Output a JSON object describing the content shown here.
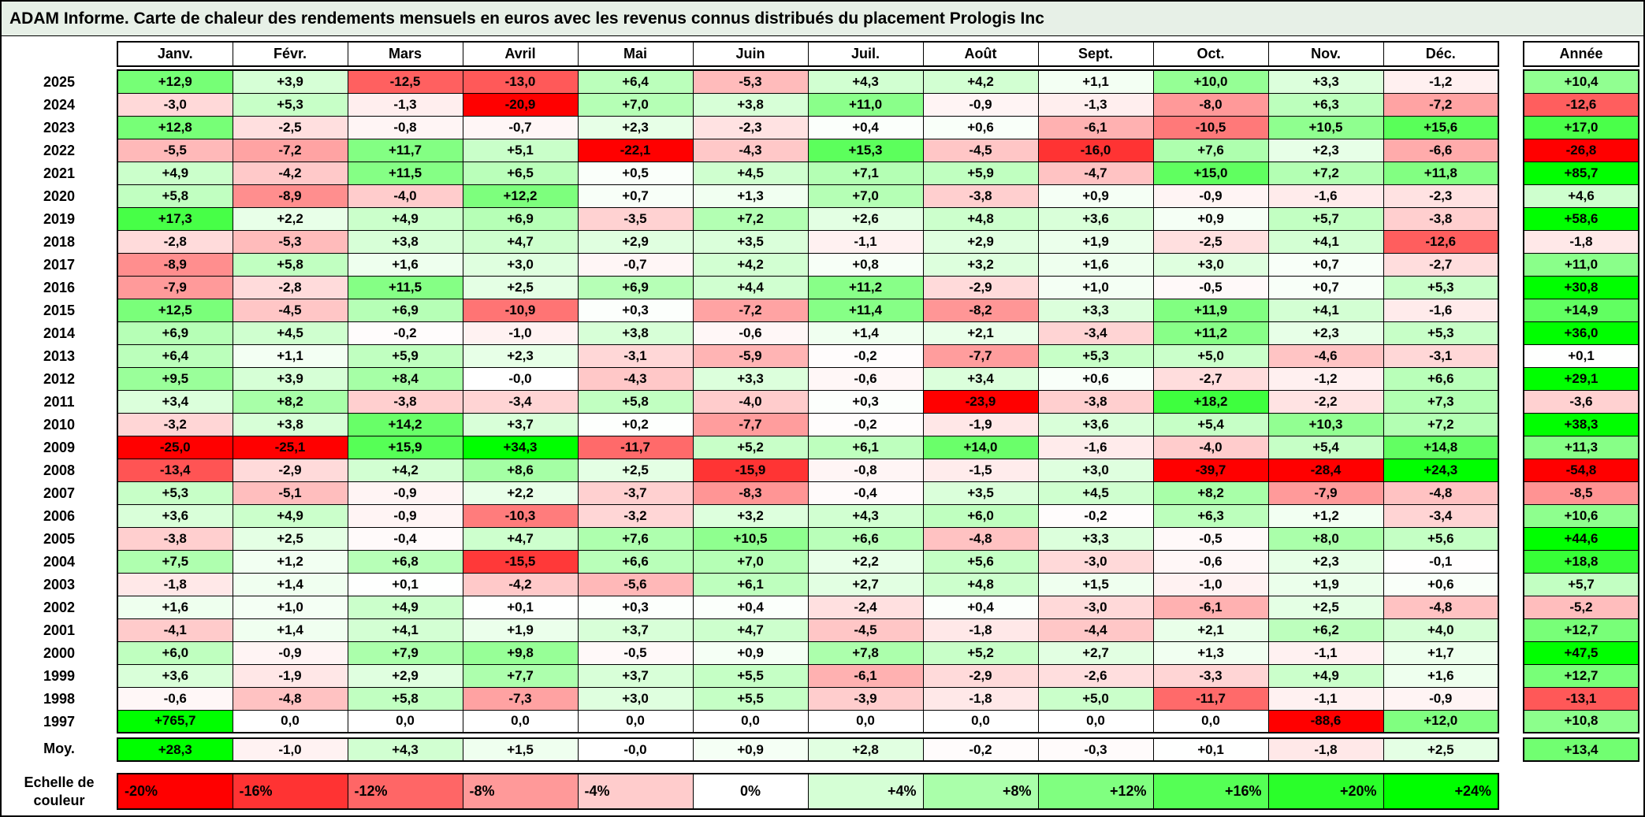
{
  "title": "ADAM Informe. Carte de chaleur des rendements mensuels en euros avec les revenus connus distribués du placement Prologis Inc",
  "chart_data": {
    "type": "heatmap",
    "columns": [
      "Janv.",
      "Févr.",
      "Mars",
      "Avril",
      "Mai",
      "Juin",
      "Juil.",
      "Août",
      "Sept.",
      "Oct.",
      "Nov.",
      "Déc."
    ],
    "year_column_header": "Année",
    "rows": [
      {
        "year": "2025",
        "values": [
          "+12,9",
          "+3,9",
          "-12,5",
          "-13,0",
          "+6,4",
          "-5,3",
          "+4,3",
          "+4,2",
          "+1,1",
          "+10,0",
          "+3,3",
          "-1,2"
        ],
        "annual": "+10,4"
      },
      {
        "year": "2024",
        "values": [
          "-3,0",
          "+5,3",
          "-1,3",
          "-20,9",
          "+7,0",
          "+3,8",
          "+11,0",
          "-0,9",
          "-1,3",
          "-8,0",
          "+6,3",
          "-7,2"
        ],
        "annual": "-12,6"
      },
      {
        "year": "2023",
        "values": [
          "+12,8",
          "-2,5",
          "-0,8",
          "-0,7",
          "+2,3",
          "-2,3",
          "+0,4",
          "+0,6",
          "-6,1",
          "-10,5",
          "+10,5",
          "+15,6"
        ],
        "annual": "+17,0"
      },
      {
        "year": "2022",
        "values": [
          "-5,5",
          "-7,2",
          "+11,7",
          "+5,1",
          "-22,1",
          "-4,3",
          "+15,3",
          "-4,5",
          "-16,0",
          "+7,6",
          "+2,3",
          "-6,6"
        ],
        "annual": "-26,8"
      },
      {
        "year": "2021",
        "values": [
          "+4,9",
          "-4,2",
          "+11,5",
          "+6,5",
          "+0,5",
          "+4,5",
          "+7,1",
          "+5,9",
          "-4,7",
          "+15,0",
          "+7,2",
          "+11,8"
        ],
        "annual": "+85,7"
      },
      {
        "year": "2020",
        "values": [
          "+5,8",
          "-8,9",
          "-4,0",
          "+12,2",
          "+0,7",
          "+1,3",
          "+7,0",
          "-3,8",
          "+0,9",
          "-0,9",
          "-1,6",
          "-2,3"
        ],
        "annual": "+4,6"
      },
      {
        "year": "2019",
        "values": [
          "+17,3",
          "+2,2",
          "+4,9",
          "+6,9",
          "-3,5",
          "+7,2",
          "+2,6",
          "+4,8",
          "+3,6",
          "+0,9",
          "+5,7",
          "-3,8"
        ],
        "annual": "+58,6"
      },
      {
        "year": "2018",
        "values": [
          "-2,8",
          "-5,3",
          "+3,8",
          "+4,7",
          "+2,9",
          "+3,5",
          "-1,1",
          "+2,9",
          "+1,9",
          "-2,5",
          "+4,1",
          "-12,6"
        ],
        "annual": "-1,8"
      },
      {
        "year": "2017",
        "values": [
          "-8,9",
          "+5,8",
          "+1,6",
          "+3,0",
          "-0,7",
          "+4,2",
          "+0,8",
          "+3,2",
          "+1,6",
          "+3,0",
          "+0,7",
          "-2,7"
        ],
        "annual": "+11,0"
      },
      {
        "year": "2016",
        "values": [
          "-7,9",
          "-2,8",
          "+11,5",
          "+2,5",
          "+6,9",
          "+4,4",
          "+11,2",
          "-2,9",
          "+1,0",
          "-0,5",
          "+0,7",
          "+5,3"
        ],
        "annual": "+30,8"
      },
      {
        "year": "2015",
        "values": [
          "+12,5",
          "-4,5",
          "+6,9",
          "-10,9",
          "+0,3",
          "-7,2",
          "+11,4",
          "-8,2",
          "+3,3",
          "+11,9",
          "+4,1",
          "-1,6"
        ],
        "annual": "+14,9"
      },
      {
        "year": "2014",
        "values": [
          "+6,9",
          "+4,5",
          "-0,2",
          "-1,0",
          "+3,8",
          "-0,6",
          "+1,4",
          "+2,1",
          "-3,4",
          "+11,2",
          "+2,3",
          "+5,3"
        ],
        "annual": "+36,0"
      },
      {
        "year": "2013",
        "values": [
          "+6,4",
          "+1,1",
          "+5,9",
          "+2,3",
          "-3,1",
          "-5,9",
          "-0,2",
          "-7,7",
          "+5,3",
          "+5,0",
          "-4,6",
          "-3,1"
        ],
        "annual": "+0,1"
      },
      {
        "year": "2012",
        "values": [
          "+9,5",
          "+3,9",
          "+8,4",
          "-0,0",
          "-4,3",
          "+3,3",
          "-0,6",
          "+3,4",
          "+0,6",
          "-2,7",
          "-1,2",
          "+6,6"
        ],
        "annual": "+29,1"
      },
      {
        "year": "2011",
        "values": [
          "+3,4",
          "+8,2",
          "-3,8",
          "-3,4",
          "+5,8",
          "-4,0",
          "+0,3",
          "-23,9",
          "-3,8",
          "+18,2",
          "-2,2",
          "+7,3"
        ],
        "annual": "-3,6"
      },
      {
        "year": "2010",
        "values": [
          "-3,2",
          "+3,8",
          "+14,2",
          "+3,7",
          "+0,2",
          "-7,7",
          "-0,2",
          "-1,9",
          "+3,6",
          "+5,4",
          "+10,3",
          "+7,2"
        ],
        "annual": "+38,3"
      },
      {
        "year": "2009",
        "values": [
          "-25,0",
          "-25,1",
          "+15,9",
          "+34,3",
          "-11,7",
          "+5,2",
          "+6,1",
          "+14,0",
          "-1,6",
          "-4,0",
          "+5,4",
          "+14,8"
        ],
        "annual": "+11,3"
      },
      {
        "year": "2008",
        "values": [
          "-13,4",
          "-2,9",
          "+4,2",
          "+8,6",
          "+2,5",
          "-15,9",
          "-0,8",
          "-1,5",
          "+3,0",
          "-39,7",
          "-28,4",
          "+24,3"
        ],
        "annual": "-54,8"
      },
      {
        "year": "2007",
        "values": [
          "+5,3",
          "-5,1",
          "-0,9",
          "+2,2",
          "-3,7",
          "-8,3",
          "-0,4",
          "+3,5",
          "+4,5",
          "+8,2",
          "-7,9",
          "-4,8"
        ],
        "annual": "-8,5"
      },
      {
        "year": "2006",
        "values": [
          "+3,6",
          "+4,9",
          "-0,9",
          "-10,3",
          "-3,2",
          "+3,2",
          "+4,3",
          "+6,0",
          "-0,2",
          "+6,3",
          "+1,2",
          "-3,4"
        ],
        "annual": "+10,6"
      },
      {
        "year": "2005",
        "values": [
          "-3,8",
          "+2,5",
          "-0,4",
          "+4,7",
          "+7,6",
          "+10,5",
          "+6,6",
          "-4,8",
          "+3,3",
          "-0,5",
          "+8,0",
          "+5,6"
        ],
        "annual": "+44,6"
      },
      {
        "year": "2004",
        "values": [
          "+7,5",
          "+1,2",
          "+6,8",
          "-15,5",
          "+6,6",
          "+7,0",
          "+2,2",
          "+5,6",
          "-3,0",
          "-0,6",
          "+2,3",
          "-0,1"
        ],
        "annual": "+18,8"
      },
      {
        "year": "2003",
        "values": [
          "-1,8",
          "+1,4",
          "+0,1",
          "-4,2",
          "-5,6",
          "+6,1",
          "+2,7",
          "+4,8",
          "+1,5",
          "-1,0",
          "+1,9",
          "+0,6"
        ],
        "annual": "+5,7"
      },
      {
        "year": "2002",
        "values": [
          "+1,6",
          "+1,0",
          "+4,9",
          "+0,1",
          "+0,3",
          "+0,4",
          "-2,4",
          "+0,4",
          "-3,0",
          "-6,1",
          "+2,5",
          "-4,8"
        ],
        "annual": "-5,2"
      },
      {
        "year": "2001",
        "values": [
          "-4,1",
          "+1,4",
          "+4,1",
          "+1,9",
          "+3,7",
          "+4,7",
          "-4,5",
          "-1,8",
          "-4,4",
          "+2,1",
          "+6,2",
          "+4,0"
        ],
        "annual": "+12,7"
      },
      {
        "year": "2000",
        "values": [
          "+6,0",
          "-0,9",
          "+7,9",
          "+9,8",
          "-0,5",
          "+0,9",
          "+7,8",
          "+5,2",
          "+2,7",
          "+1,3",
          "-1,1",
          "+1,7"
        ],
        "annual": "+47,5"
      },
      {
        "year": "1999",
        "values": [
          "+3,6",
          "-1,9",
          "+2,9",
          "+7,7",
          "+3,7",
          "+5,5",
          "-6,1",
          "-2,9",
          "-2,6",
          "-3,3",
          "+4,9",
          "+1,6"
        ],
        "annual": "+12,7"
      },
      {
        "year": "1998",
        "values": [
          "-0,6",
          "-4,8",
          "+5,8",
          "-7,3",
          "+3,0",
          "+5,5",
          "-3,9",
          "-1,8",
          "+5,0",
          "-11,7",
          "-1,1",
          "-0,9"
        ],
        "annual": "-13,1"
      },
      {
        "year": "1997",
        "values": [
          "+765,7",
          "0,0",
          "0,0",
          "0,0",
          "0,0",
          "0,0",
          "0,0",
          "0,0",
          "0,0",
          "0,0",
          "-88,6",
          "+12,0"
        ],
        "annual": "+10,8"
      }
    ],
    "average_row": {
      "label": "Moy.",
      "values": [
        "+28,3",
        "-1,0",
        "+4,3",
        "+1,5",
        "-0,0",
        "+0,9",
        "+2,8",
        "-0,2",
        "-0,3",
        "+0,1",
        "-1,8",
        "+2,5"
      ],
      "annual": "+13,4"
    },
    "color_scale": {
      "label": "Echelle de couleur",
      "stops": [
        "-20%",
        "-16%",
        "-12%",
        "-8%",
        "-4%",
        "0%",
        "+4%",
        "+8%",
        "+12%",
        "+16%",
        "+20%",
        "+24%"
      ],
      "negative_color": "#FF0000",
      "zero_color": "#FFFFFF",
      "positive_color": "#00FF00",
      "negative_limit": 20,
      "positive_limit": 24
    }
  }
}
